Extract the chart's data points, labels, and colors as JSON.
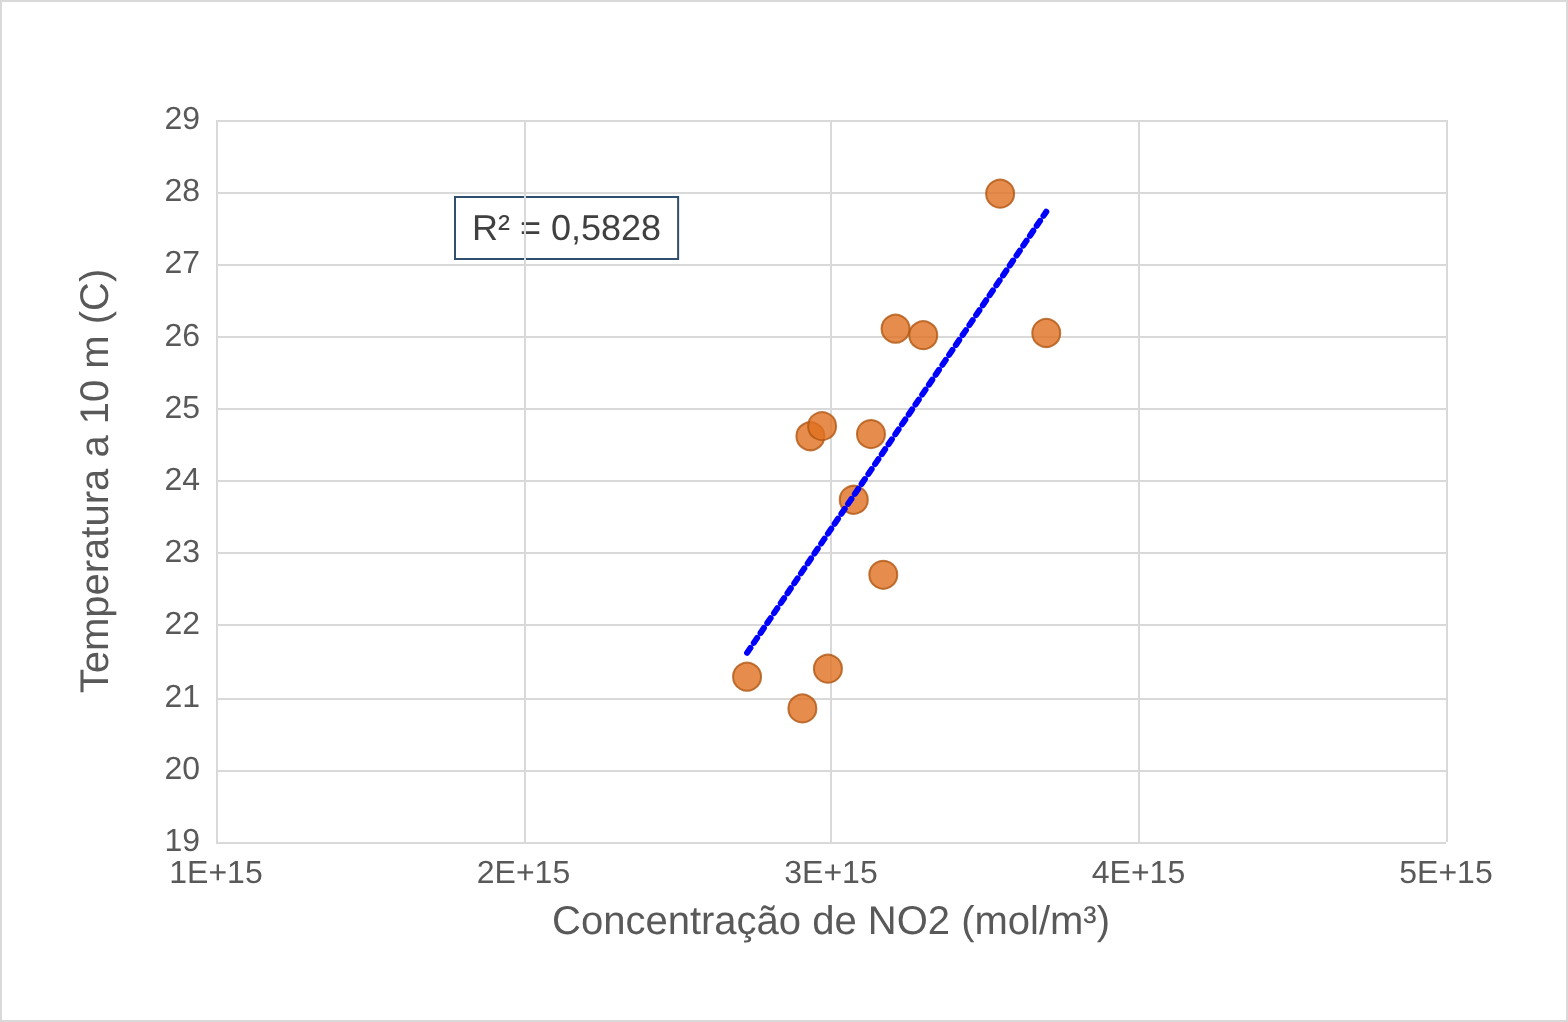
{
  "chart_data": {
    "type": "scatter",
    "xlabel": "Concentração de NO2 (mol/m³)",
    "ylabel": "Temperatura a 10 m (C)",
    "annotations": [
      "R² = 0,5828"
    ],
    "series": [
      {
        "color": "#e07020",
        "marker": "circle",
        "x": [
          2727000000000000.0,
          2907000000000000.0,
          2933000000000000.0,
          2971000000000000.0,
          2990000000000000.0,
          3074000000000000.0,
          3130000000000000.0,
          3170000000000000.0,
          3210000000000000.0,
          3300000000000000.0,
          3550000000000000.0,
          3700000000000000.0
        ],
        "values": [
          21.29,
          20.85,
          24.62,
          24.76,
          21.4,
          23.74,
          24.65,
          22.7,
          26.11,
          26.02,
          27.98,
          26.05
        ]
      },
      {
        "type": "line",
        "color": "#0000ff",
        "marker": "none",
        "line_style": "dotted",
        "x": [
          2727000000000000.0,
          3700000000000000.0
        ],
        "values": [
          21.62,
          27.73
        ]
      }
    ],
    "xlim": [
      1000000000000000.0,
      5000000000000000.0
    ],
    "xticks": [
      {
        "value": 1000000000000000.0,
        "label": "1E+15"
      },
      {
        "value": 2000000000000000.0,
        "label": "2E+15"
      },
      {
        "value": 3000000000000000.0,
        "label": "3E+15"
      },
      {
        "value": 4000000000000000.0,
        "label": "4E+15"
      },
      {
        "value": 5000000000000000.0,
        "label": "5E+15"
      }
    ],
    "ylim": [
      19,
      29
    ],
    "yticks": [
      19,
      20,
      21,
      22,
      23,
      24,
      25,
      26,
      27,
      28,
      29
    ],
    "grid": true
  }
}
